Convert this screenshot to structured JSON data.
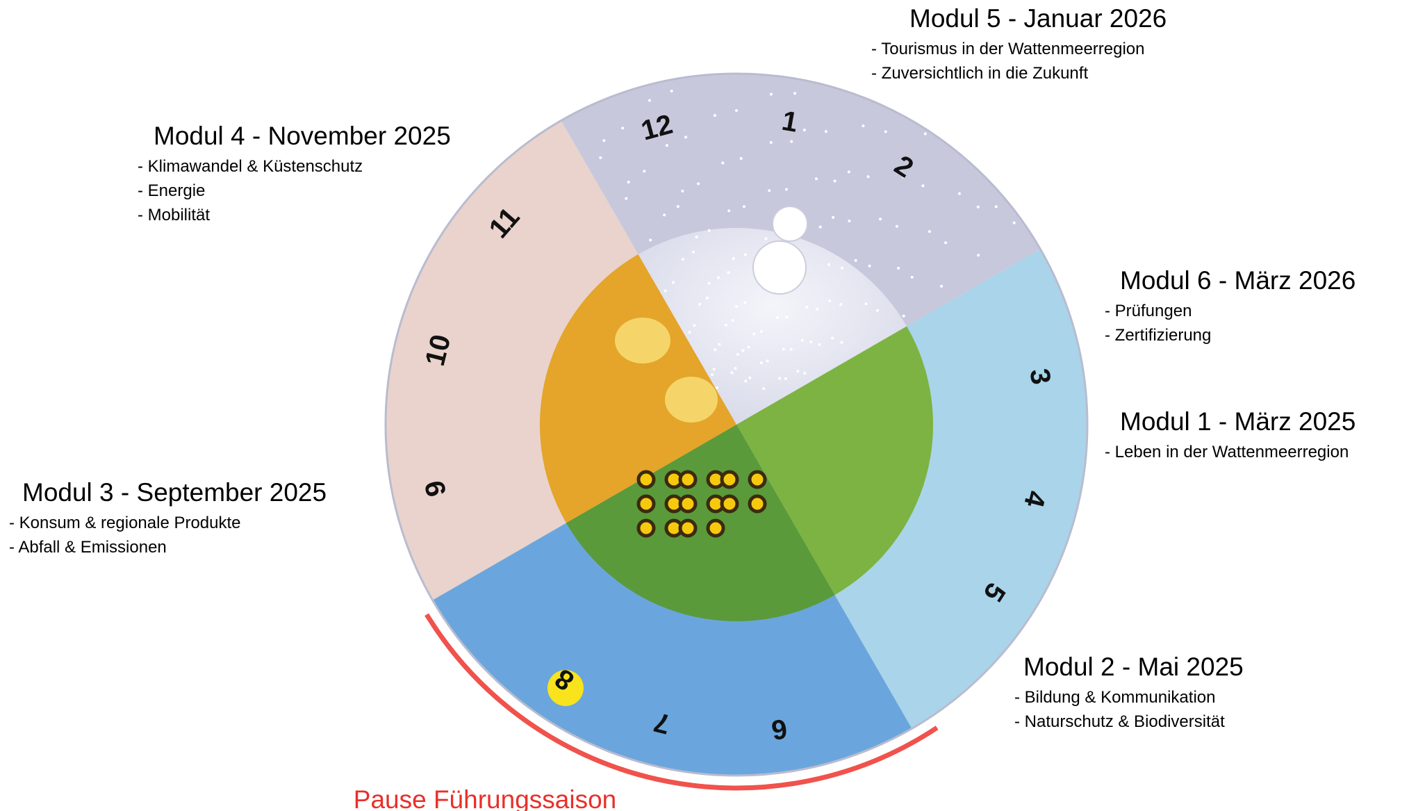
{
  "modules": [
    {
      "title": "Modul 1 - März 2025",
      "items": [
        "- Leben in der Wattenmeerregion"
      ]
    },
    {
      "title": "Modul 2 - Mai 2025",
      "items": [
        "- Bildung & Kommunikation",
        "- Naturschutz & Biodiversität"
      ]
    },
    {
      "title": "Modul 3 - September 2025",
      "items": [
        "- Konsum & regionale Produkte",
        "- Abfall & Emissionen"
      ]
    },
    {
      "title": "Modul 4 - November 2025",
      "items": [
        "- Klimawandel & Küstenschutz",
        "- Energie",
        "- Mobilität"
      ]
    },
    {
      "title": "Modul 5 - Januar 2026",
      "items": [
        "- Tourismus in der Wattenmeerregion",
        "- Zuversichtlich in die Zukunft"
      ]
    },
    {
      "title": "Modul 6 - März 2026",
      "items": [
        "- Prüfungen",
        "- Zertifizierung"
      ]
    }
  ],
  "months": [
    12,
    1,
    2,
    3,
    4,
    5,
    6,
    7,
    8,
    9,
    10,
    11
  ],
  "pause_label": "Pause Führungssaison"
}
